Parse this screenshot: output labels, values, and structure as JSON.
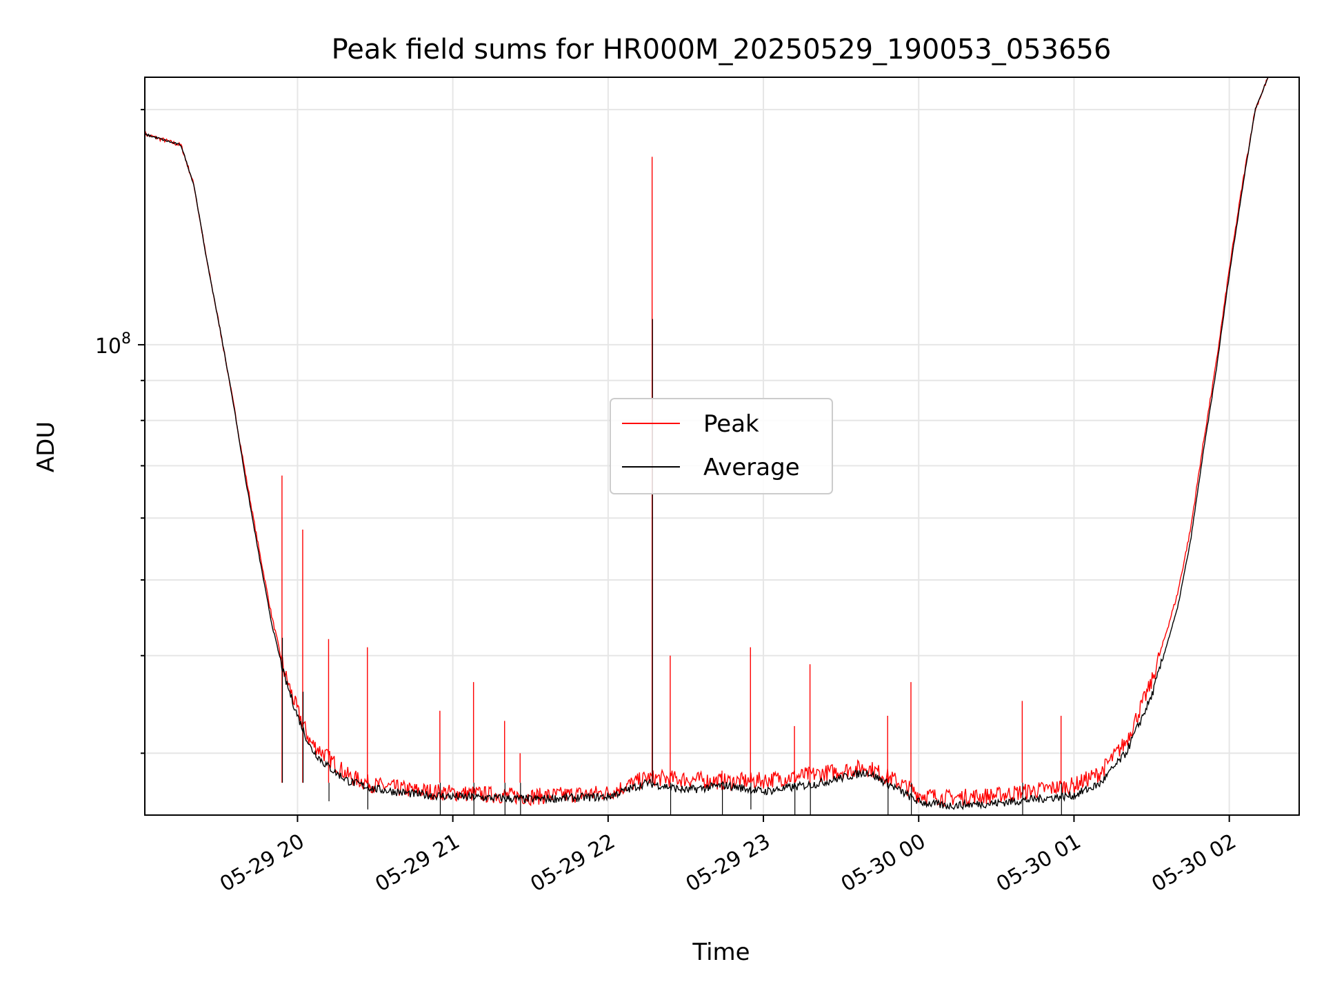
{
  "chart_data": {
    "type": "line",
    "title": "Peak field sums for HR000M_20250529_190053_053656",
    "xlabel": "Time",
    "ylabel": "ADU",
    "yscale": "log",
    "ylim": [
      25000000,
      220000000
    ],
    "xlim": [
      "2025-05-29 19:01",
      "2025-05-30 02:27"
    ],
    "x_ticks": [
      "05-29 20",
      "05-29 21",
      "05-29 22",
      "05-29 23",
      "05-30 00",
      "05-30 01",
      "05-30 02"
    ],
    "y_ticks": [
      "10^8"
    ],
    "grid": true,
    "legend_position": "center",
    "series": [
      {
        "name": "Peak",
        "color": "#ff0000",
        "x": [
          "19:01",
          "19:15",
          "19:20",
          "19:25",
          "19:30",
          "19:35",
          "19:40",
          "19:45",
          "19:50",
          "19:55",
          "20:00",
          "20:05",
          "20:10",
          "20:15",
          "20:20",
          "20:30",
          "20:45",
          "21:00",
          "21:30",
          "22:00",
          "22:15",
          "22:30",
          "22:45",
          "23:00",
          "23:20",
          "23:40",
          "23:50",
          "00:00",
          "00:10",
          "00:30",
          "01:00",
          "01:10",
          "01:20",
          "01:30",
          "01:40",
          "01:45",
          "01:50",
          "01:55",
          "02:00",
          "02:05",
          "02:10",
          "02:15"
        ],
        "y": [
          186000000,
          180000000,
          160000000,
          128000000,
          105000000,
          85000000,
          68000000,
          55000000,
          45000000,
          38000000,
          34000000,
          31000000,
          30000000,
          29000000,
          28000000,
          27300000,
          26900000,
          26700000,
          26400000,
          26700000,
          27900000,
          27800000,
          27600000,
          27700000,
          28200000,
          28800000,
          27800000,
          26600000,
          26300000,
          26500000,
          27300000,
          28300000,
          31000000,
          37000000,
          48000000,
          58000000,
          75000000,
          95000000,
          125000000,
          160000000,
          200000000,
          220000000
        ],
        "spikes": [
          {
            "x": "19:54",
            "y": 68000000
          },
          {
            "x": "20:02",
            "y": 58000000
          },
          {
            "x": "20:12",
            "y": 42000000
          },
          {
            "x": "20:27",
            "y": 41000000
          },
          {
            "x": "20:55",
            "y": 34000000
          },
          {
            "x": "21:08",
            "y": 37000000
          },
          {
            "x": "21:20",
            "y": 33000000
          },
          {
            "x": "21:26",
            "y": 30000000
          },
          {
            "x": "22:17",
            "y": 174000000
          },
          {
            "x": "22:24",
            "y": 40000000
          },
          {
            "x": "22:44",
            "y": 28500000
          },
          {
            "x": "22:55",
            "y": 41000000
          },
          {
            "x": "23:12",
            "y": 32500000
          },
          {
            "x": "23:18",
            "y": 39000000
          },
          {
            "x": "23:48",
            "y": 33500000
          },
          {
            "x": "23:57",
            "y": 37000000
          },
          {
            "x": "00:40",
            "y": 35000000
          },
          {
            "x": "00:55",
            "y": 33500000
          }
        ]
      },
      {
        "name": "Average",
        "color": "#000000",
        "x": [
          "19:01",
          "19:15",
          "19:20",
          "19:25",
          "19:30",
          "19:35",
          "19:40",
          "19:45",
          "19:50",
          "19:55",
          "20:00",
          "20:05",
          "20:10",
          "20:15",
          "20:20",
          "20:30",
          "20:45",
          "21:00",
          "21:30",
          "22:00",
          "22:15",
          "22:30",
          "22:45",
          "23:00",
          "23:20",
          "23:40",
          "23:50",
          "00:00",
          "00:10",
          "00:30",
          "01:00",
          "01:10",
          "01:20",
          "01:30",
          "01:40",
          "01:45",
          "01:50",
          "01:55",
          "02:00",
          "02:05",
          "02:10",
          "02:15"
        ],
        "y": [
          186000000,
          180000000,
          160000000,
          128000000,
          105000000,
          85000000,
          67000000,
          54000000,
          44000000,
          37500000,
          33500000,
          30500000,
          29200000,
          28300000,
          27600000,
          27000000,
          26600000,
          26400000,
          26200000,
          26400000,
          27500000,
          26900000,
          27300000,
          26800000,
          27400000,
          28400000,
          27200000,
          26000000,
          25700000,
          25900000,
          26500000,
          27400000,
          30000000,
          35500000,
          46000000,
          56000000,
          73000000,
          93000000,
          123000000,
          158000000,
          200000000,
          220000000
        ]
      }
    ]
  }
}
